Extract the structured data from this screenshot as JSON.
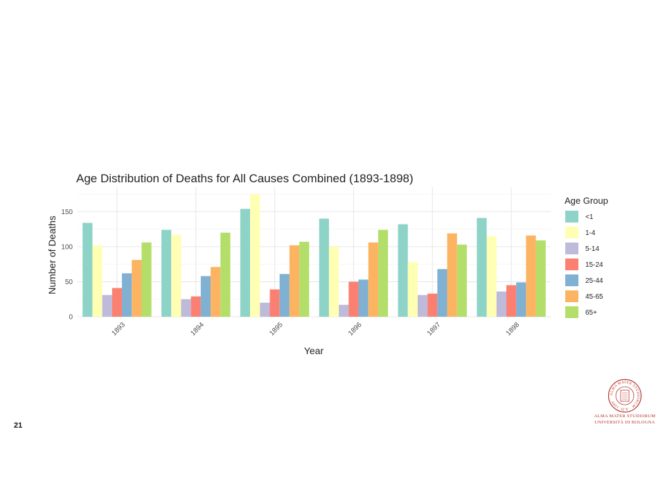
{
  "slide": {
    "number": "21",
    "logo": {
      "line1": "ALMA MATER STUDIORUM",
      "line2": "UNIVERSITÀ DI BOLOGNA",
      "seal_text": "ALMA MATER STUDIORUM · A.D. 1088",
      "color": "#b5342a"
    }
  },
  "chart_data": {
    "type": "bar",
    "title": "Age Distribution of Deaths for All Causes Combined (1893-1898)",
    "xlabel": "Year",
    "ylabel": "Number of Deaths",
    "ylim": [
      0,
      185
    ],
    "yticks": [
      0,
      50,
      100,
      150
    ],
    "grid": true,
    "legend_title": "Age Group",
    "legend_position": "right",
    "categories": [
      "1893",
      "1894",
      "1895",
      "1896",
      "1897",
      "1898"
    ],
    "series": [
      {
        "name": "<1",
        "color": "#8dd3c7",
        "values": [
          134,
          124,
          154,
          140,
          132,
          141
        ]
      },
      {
        "name": "1-4",
        "color": "#ffffb3",
        "values": [
          102,
          117,
          175,
          100,
          78,
          115
        ]
      },
      {
        "name": "5-14",
        "color": "#bebada",
        "values": [
          31,
          25,
          20,
          17,
          31,
          36
        ]
      },
      {
        "name": "15-24",
        "color": "#fb8072",
        "values": [
          41,
          29,
          39,
          50,
          33,
          45
        ]
      },
      {
        "name": "25-44",
        "color": "#80b1d3",
        "values": [
          62,
          58,
          61,
          53,
          68,
          49
        ]
      },
      {
        "name": "45-65",
        "color": "#fdb462",
        "values": [
          81,
          71,
          102,
          106,
          119,
          116
        ]
      },
      {
        "name": "65+",
        "color": "#b3de69",
        "values": [
          106,
          120,
          107,
          124,
          103,
          109
        ]
      }
    ]
  }
}
